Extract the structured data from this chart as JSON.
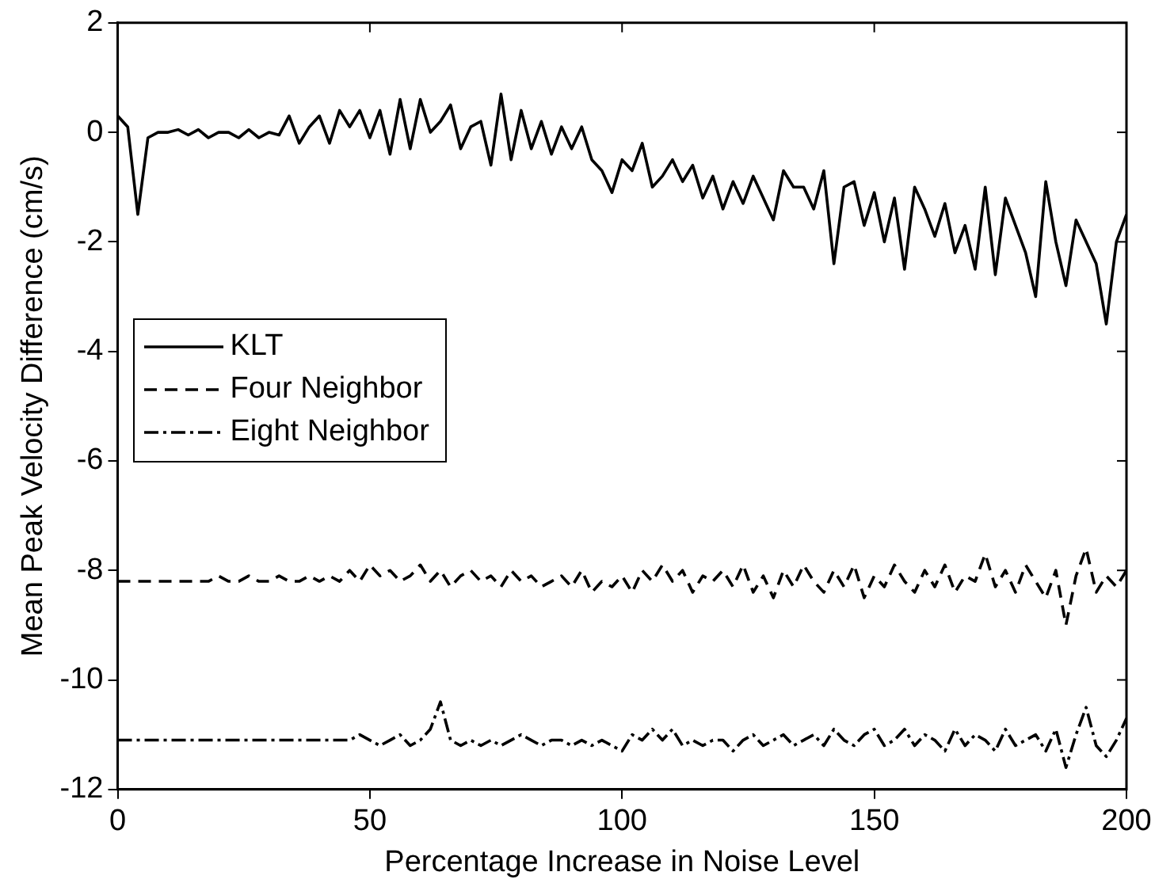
{
  "chart_data": {
    "type": "line",
    "xlabel": "Percentage Increase in Noise Level",
    "ylabel": "Mean Peak Velocity Difference (cm/s)",
    "x": [
      0,
      2,
      4,
      6,
      8,
      10,
      12,
      14,
      16,
      18,
      20,
      22,
      24,
      26,
      28,
      30,
      32,
      34,
      36,
      38,
      40,
      42,
      44,
      46,
      48,
      50,
      52,
      54,
      56,
      58,
      60,
      62,
      64,
      66,
      68,
      70,
      72,
      74,
      76,
      78,
      80,
      82,
      84,
      86,
      88,
      90,
      92,
      94,
      96,
      98,
      100,
      102,
      104,
      106,
      108,
      110,
      112,
      114,
      116,
      118,
      120,
      122,
      124,
      126,
      128,
      130,
      132,
      134,
      136,
      138,
      140,
      142,
      144,
      146,
      148,
      150,
      152,
      154,
      156,
      158,
      160,
      162,
      164,
      166,
      168,
      170,
      172,
      174,
      176,
      178,
      180,
      182,
      184,
      186,
      188,
      190,
      192,
      194,
      196,
      198,
      200
    ],
    "xlim": [
      0,
      200
    ],
    "xticks": [
      0,
      50,
      100,
      150,
      200
    ],
    "ylim": [
      -12,
      2
    ],
    "yticks": [
      -12,
      -10,
      -8,
      -6,
      -4,
      -2,
      0,
      2
    ],
    "grid": false,
    "legend": "left",
    "marker": "none",
    "series": [
      {
        "name": "KLT",
        "color": "#000000",
        "line_style": "solid",
        "values": [
          0.3,
          0.1,
          -1.5,
          -0.1,
          0,
          0,
          0.05,
          -0.05,
          0.05,
          -0.1,
          0,
          0,
          -0.1,
          0.05,
          -0.1,
          0,
          -0.05,
          0.3,
          -0.2,
          0.1,
          0.3,
          -0.2,
          0.4,
          0.1,
          0.4,
          -0.1,
          0.4,
          -0.4,
          0.6,
          -0.3,
          0.6,
          0,
          0.2,
          0.5,
          -0.3,
          0.1,
          0.2,
          -0.6,
          0.7,
          -0.5,
          0.4,
          -0.3,
          0.2,
          -0.4,
          0.1,
          -0.3,
          0.1,
          -0.5,
          -0.7,
          -1.1,
          -0.5,
          -0.7,
          -0.2,
          -1,
          -0.8,
          -0.5,
          -0.9,
          -0.6,
          -1.2,
          -0.8,
          -1.4,
          -0.9,
          -1.3,
          -0.8,
          -1.2,
          -1.6,
          -0.7,
          -1,
          -1,
          -1.4,
          -0.7,
          -2.4,
          -1,
          -0.9,
          -1.7,
          -1.1,
          -2,
          -1.2,
          -2.5,
          -1,
          -1.4,
          -1.9,
          -1.3,
          -2.2,
          -1.7,
          -2.5,
          -1,
          -2.6,
          -1.2,
          -1.7,
          -2.2,
          -3,
          -0.9,
          -2,
          -2.8,
          -1.6,
          -2,
          -2.4,
          -3.5,
          -2,
          -1.5
        ]
      },
      {
        "name": "Four Neighbor",
        "color": "#000000",
        "line_style": "dashed",
        "values": [
          -8.2,
          -8.2,
          -8.2,
          -8.2,
          -8.2,
          -8.2,
          -8.2,
          -8.2,
          -8.2,
          -8.2,
          -8.1,
          -8.2,
          -8.2,
          -8.1,
          -8.2,
          -8.2,
          -8.1,
          -8.2,
          -8.2,
          -8.1,
          -8.2,
          -8.1,
          -8.2,
          -8,
          -8.2,
          -7.9,
          -8.1,
          -8,
          -8.2,
          -8.1,
          -7.9,
          -8.2,
          -8,
          -8.3,
          -8.1,
          -8,
          -8.2,
          -8.1,
          -8.3,
          -8,
          -8.2,
          -8.1,
          -8.3,
          -8.2,
          -8.1,
          -8.3,
          -8,
          -8.4,
          -8.2,
          -8.3,
          -8.1,
          -8.4,
          -8,
          -8.2,
          -7.9,
          -8.2,
          -8,
          -8.4,
          -8.1,
          -8.2,
          -8,
          -8.3,
          -7.9,
          -8.4,
          -8.1,
          -8.5,
          -8,
          -8.3,
          -7.9,
          -8.2,
          -8.4,
          -8,
          -8.3,
          -7.9,
          -8.5,
          -8.1,
          -8.3,
          -7.9,
          -8.2,
          -8.4,
          -8,
          -8.3,
          -7.9,
          -8.4,
          -8.1,
          -8.2,
          -7.7,
          -8.3,
          -8,
          -8.4,
          -7.9,
          -8.2,
          -8.5,
          -8,
          -9,
          -8.1,
          -7.6,
          -8.4,
          -8.1,
          -8.3,
          -8
        ]
      },
      {
        "name": "Eight Neighbor",
        "color": "#000000",
        "line_style": "dashdot",
        "values": [
          -11.1,
          -11.1,
          -11.1,
          -11.1,
          -11.1,
          -11.1,
          -11.1,
          -11.1,
          -11.1,
          -11.1,
          -11.1,
          -11.1,
          -11.1,
          -11.1,
          -11.1,
          -11.1,
          -11.1,
          -11.1,
          -11.1,
          -11.1,
          -11.1,
          -11.1,
          -11.1,
          -11.1,
          -11.0,
          -11.1,
          -11.2,
          -11.1,
          -11,
          -11.2,
          -11.1,
          -10.9,
          -10.4,
          -11.1,
          -11.2,
          -11.1,
          -11.2,
          -11.1,
          -11.2,
          -11.1,
          -11,
          -11.1,
          -11.2,
          -11.1,
          -11.1,
          -11.2,
          -11.1,
          -11.2,
          -11.1,
          -11.2,
          -11.3,
          -11,
          -11.1,
          -10.9,
          -11.1,
          -10.9,
          -11.2,
          -11.1,
          -11.2,
          -11.1,
          -11.1,
          -11.3,
          -11.1,
          -11,
          -11.2,
          -11.1,
          -11,
          -11.2,
          -11.1,
          -11,
          -11.2,
          -10.9,
          -11.1,
          -11.2,
          -11,
          -10.9,
          -11.2,
          -11.1,
          -10.9,
          -11.2,
          -11,
          -11.1,
          -11.3,
          -10.9,
          -11.2,
          -11,
          -11.1,
          -11.3,
          -10.9,
          -11.2,
          -11.1,
          -11,
          -11.3,
          -10.9,
          -11.6,
          -11,
          -10.5,
          -11.2,
          -11.4,
          -11.1,
          -10.7
        ]
      }
    ]
  }
}
